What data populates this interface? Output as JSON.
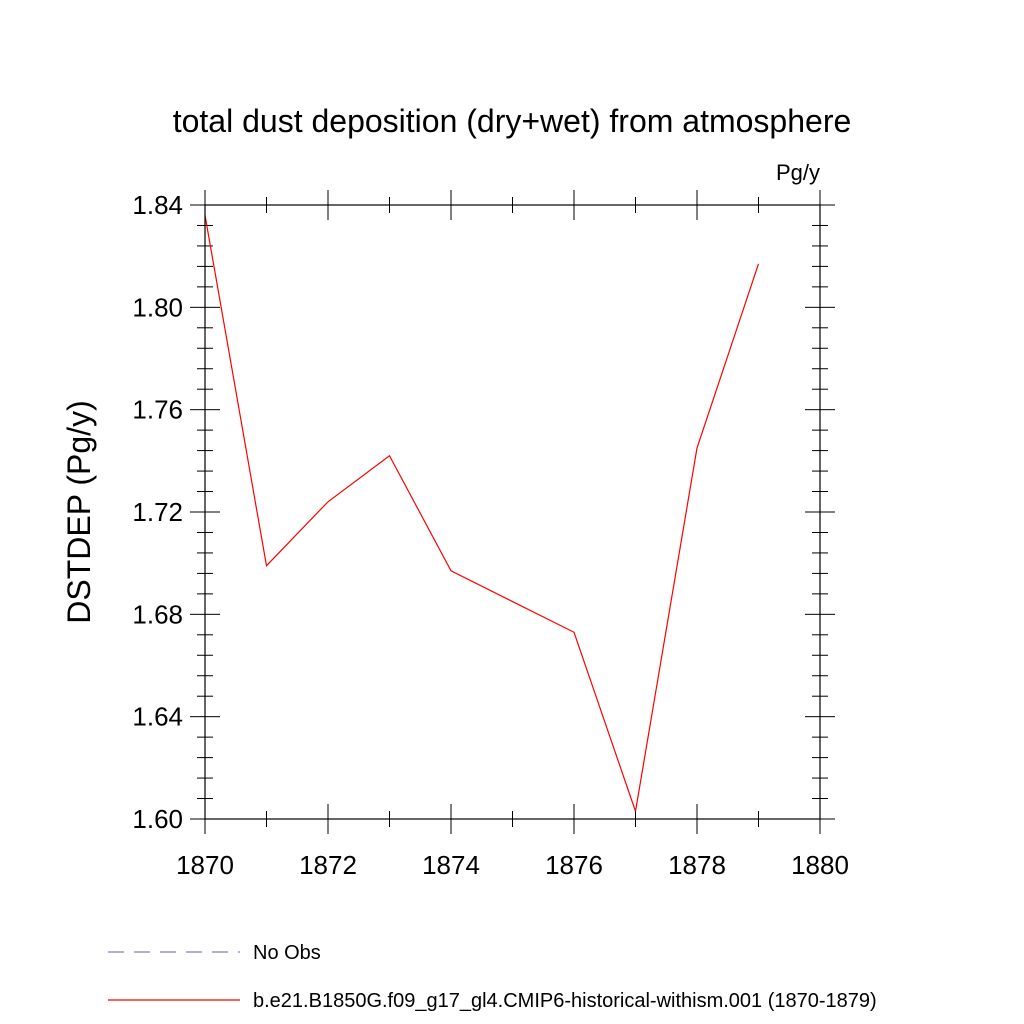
{
  "chart_data": {
    "type": "line",
    "title": "total dust deposition (dry+wet) from atmosphere",
    "units": "Pg/y",
    "ylabel": "DSTDEP  (Pg/y)",
    "xlabel": "",
    "xlim": [
      1870,
      1880
    ],
    "ylim": [
      1.6,
      1.84
    ],
    "x_ticks": [
      "1870",
      "1872",
      "1874",
      "1876",
      "1878",
      "1880"
    ],
    "y_ticks": [
      "1.60",
      "1.64",
      "1.68",
      "1.72",
      "1.76",
      "1.80",
      "1.84"
    ],
    "grid": false,
    "legend_position": "bottom",
    "x": [
      1870,
      1871,
      1872,
      1873,
      1874,
      1875,
      1876,
      1877,
      1878,
      1879
    ],
    "series": [
      {
        "name": "b.e21.B1850G.f09_g17_gl4.CMIP6-historical-withism.001 (1870-1879)",
        "color": "#ff0000",
        "dash": "solid",
        "values": [
          1.836,
          1.699,
          1.724,
          1.742,
          1.697,
          1.685,
          1.673,
          1.603,
          1.745,
          1.817
        ]
      }
    ],
    "legend": [
      {
        "label": "No Obs",
        "color": "#8080c0",
        "dash": "dashed"
      },
      {
        "label": "b.e21.B1850G.f09_g17_gl4.CMIP6-historical-withism.001 (1870-1879)",
        "color": "#ff0000",
        "dash": "solid"
      }
    ]
  }
}
